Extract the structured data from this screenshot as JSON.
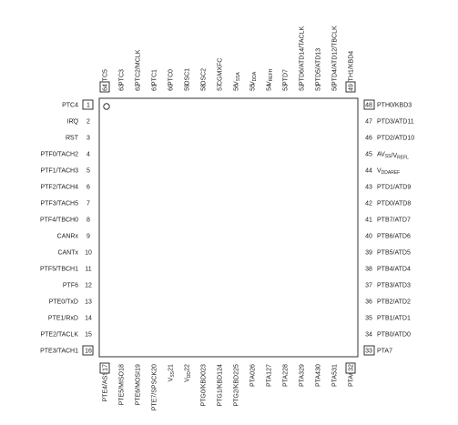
{
  "pins": {
    "left": [
      {
        "num": "1",
        "label": "PTC4"
      },
      {
        "num": "2",
        "label": "IRQ",
        "overline": true
      },
      {
        "num": "3",
        "label": "RST",
        "overline": true
      },
      {
        "num": "4",
        "label": "PTF0/TACH2"
      },
      {
        "num": "5",
        "label": "PTF1/TACH3"
      },
      {
        "num": "6",
        "label": "PTF2/TACH4"
      },
      {
        "num": "7",
        "label": "PTF3/TACH5"
      },
      {
        "num": "8",
        "label": "PTF4/TBCH0"
      },
      {
        "num": "9",
        "label": "CANRx"
      },
      {
        "num": "10",
        "label": "CANTx"
      },
      {
        "num": "11",
        "label": "PTF5/TBCH1"
      },
      {
        "num": "12",
        "label": "PTF6"
      },
      {
        "num": "13",
        "label": "PTE0/TxD"
      },
      {
        "num": "14",
        "label": "PTE1/RxD"
      },
      {
        "num": "15",
        "label": "PTE2/TACLK"
      },
      {
        "num": "16",
        "label": "PTE3/TACH1"
      }
    ],
    "bottom": [
      {
        "num": "17",
        "label": "PTE4/ASS"
      },
      {
        "num": "18",
        "label": "PTE5/MISO"
      },
      {
        "num": "19",
        "label": "PTE6/MOSI"
      },
      {
        "num": "20",
        "label": "PTE7/SPSCK"
      },
      {
        "num": "21",
        "label": "V_SS"
      },
      {
        "num": "22",
        "label": "V_DD"
      },
      {
        "num": "23",
        "label": "PTG0/KBD0"
      },
      {
        "num": "24",
        "label": "PTG1/KBD1"
      },
      {
        "num": "25",
        "label": "PTG2/KBD2"
      },
      {
        "num": "26",
        "label": "PTA0"
      },
      {
        "num": "27",
        "label": "PTA1"
      },
      {
        "num": "28",
        "label": "PTA2"
      },
      {
        "num": "29",
        "label": "PTA3"
      },
      {
        "num": "30",
        "label": "PTA4"
      },
      {
        "num": "31",
        "label": "PTA5"
      },
      {
        "num": "32",
        "label": "PTA6"
      }
    ],
    "right": [
      {
        "num": "48",
        "label": "PTH0/KBD3"
      },
      {
        "num": "47",
        "label": "PTD3/ATD11"
      },
      {
        "num": "46",
        "label": "PTD2/ATD10"
      },
      {
        "num": "45",
        "label": "AV_SS/V_REFL"
      },
      {
        "num": "44",
        "label": "V_DDAREF"
      },
      {
        "num": "43",
        "label": "PTD1/ATD9"
      },
      {
        "num": "42",
        "label": "PTD0/ATD8"
      },
      {
        "num": "41",
        "label": "PTB7/ATD7"
      },
      {
        "num": "40",
        "label": "PTB6/ATD6"
      },
      {
        "num": "39",
        "label": "PTB5/ATD5"
      },
      {
        "num": "38",
        "label": "PTB4/ATD4"
      },
      {
        "num": "37",
        "label": "PTB3/ATD3"
      },
      {
        "num": "36",
        "label": "PTB2/ATD2"
      },
      {
        "num": "35",
        "label": "PTB1/ATD1"
      },
      {
        "num": "34",
        "label": "PTB0/ATD0"
      },
      {
        "num": "33",
        "label": "PTA7"
      }
    ],
    "top": [
      {
        "num": "64",
        "label": "PTC5"
      },
      {
        "num": "63",
        "label": "PTC3"
      },
      {
        "num": "62",
        "label": "PTC2/MCLK"
      },
      {
        "num": "61",
        "label": "PTC1"
      },
      {
        "num": "60",
        "label": "PTC0"
      },
      {
        "num": "59",
        "label": "OSC1"
      },
      {
        "num": "58",
        "label": "OSC2"
      },
      {
        "num": "57",
        "label": "CGMXFC"
      },
      {
        "num": "56",
        "label": "V_SSA"
      },
      {
        "num": "55",
        "label": "V_DDA"
      },
      {
        "num": "54",
        "label": "V_REFH"
      },
      {
        "num": "53",
        "label": "PTD7"
      },
      {
        "num": "52",
        "label": "PTD6/ATD14/TACLK"
      },
      {
        "num": "51",
        "label": "PTD5/ATD13"
      },
      {
        "num": "50",
        "label": "PTD4/ATD12/TBCLK"
      },
      {
        "num": "49",
        "label": "PTH1/KBD4"
      }
    ]
  }
}
